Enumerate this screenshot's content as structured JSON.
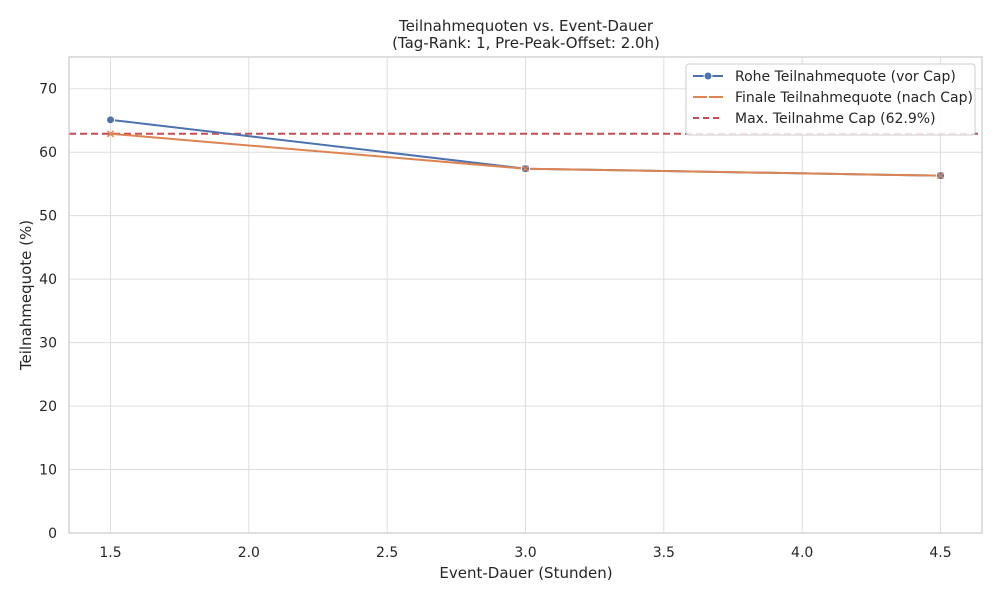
{
  "chart_data": {
    "type": "line",
    "title": "Teilnahmequoten vs. Event-Dauer",
    "subtitle": "(Tag-Rank: 1, Pre-Peak-Offset: 2.0h)",
    "xlabel": "Event-Dauer (Stunden)",
    "ylabel": "Teilnahmequote (%)",
    "xlim": [
      1.35,
      4.65
    ],
    "ylim": [
      0,
      75
    ],
    "xticks": [
      "1.5",
      "2.0",
      "2.5",
      "3.0",
      "3.5",
      "4.0",
      "4.5"
    ],
    "yticks": [
      "0",
      "10",
      "20",
      "30",
      "40",
      "50",
      "60",
      "70"
    ],
    "grid": true,
    "legend_position": "top-right",
    "x": [
      1.5,
      3.0,
      4.5
    ],
    "series": [
      {
        "name": "Rohe Teilnahmequote (vor Cap)",
        "values": [
          65.1,
          57.4,
          56.3
        ],
        "color": "#4c72b0",
        "style": "solid",
        "marker": "circle"
      },
      {
        "name": "Finale Teilnahmequote (nach Cap)",
        "values": [
          62.9,
          57.4,
          56.3
        ],
        "color": "#dd8452",
        "style": "solid",
        "marker": "x"
      }
    ],
    "reference_lines": [
      {
        "name": "Max. Teilnahme Cap (62.9%)",
        "y": 62.9,
        "color": "#c44e52",
        "style": "dashed"
      }
    ]
  }
}
